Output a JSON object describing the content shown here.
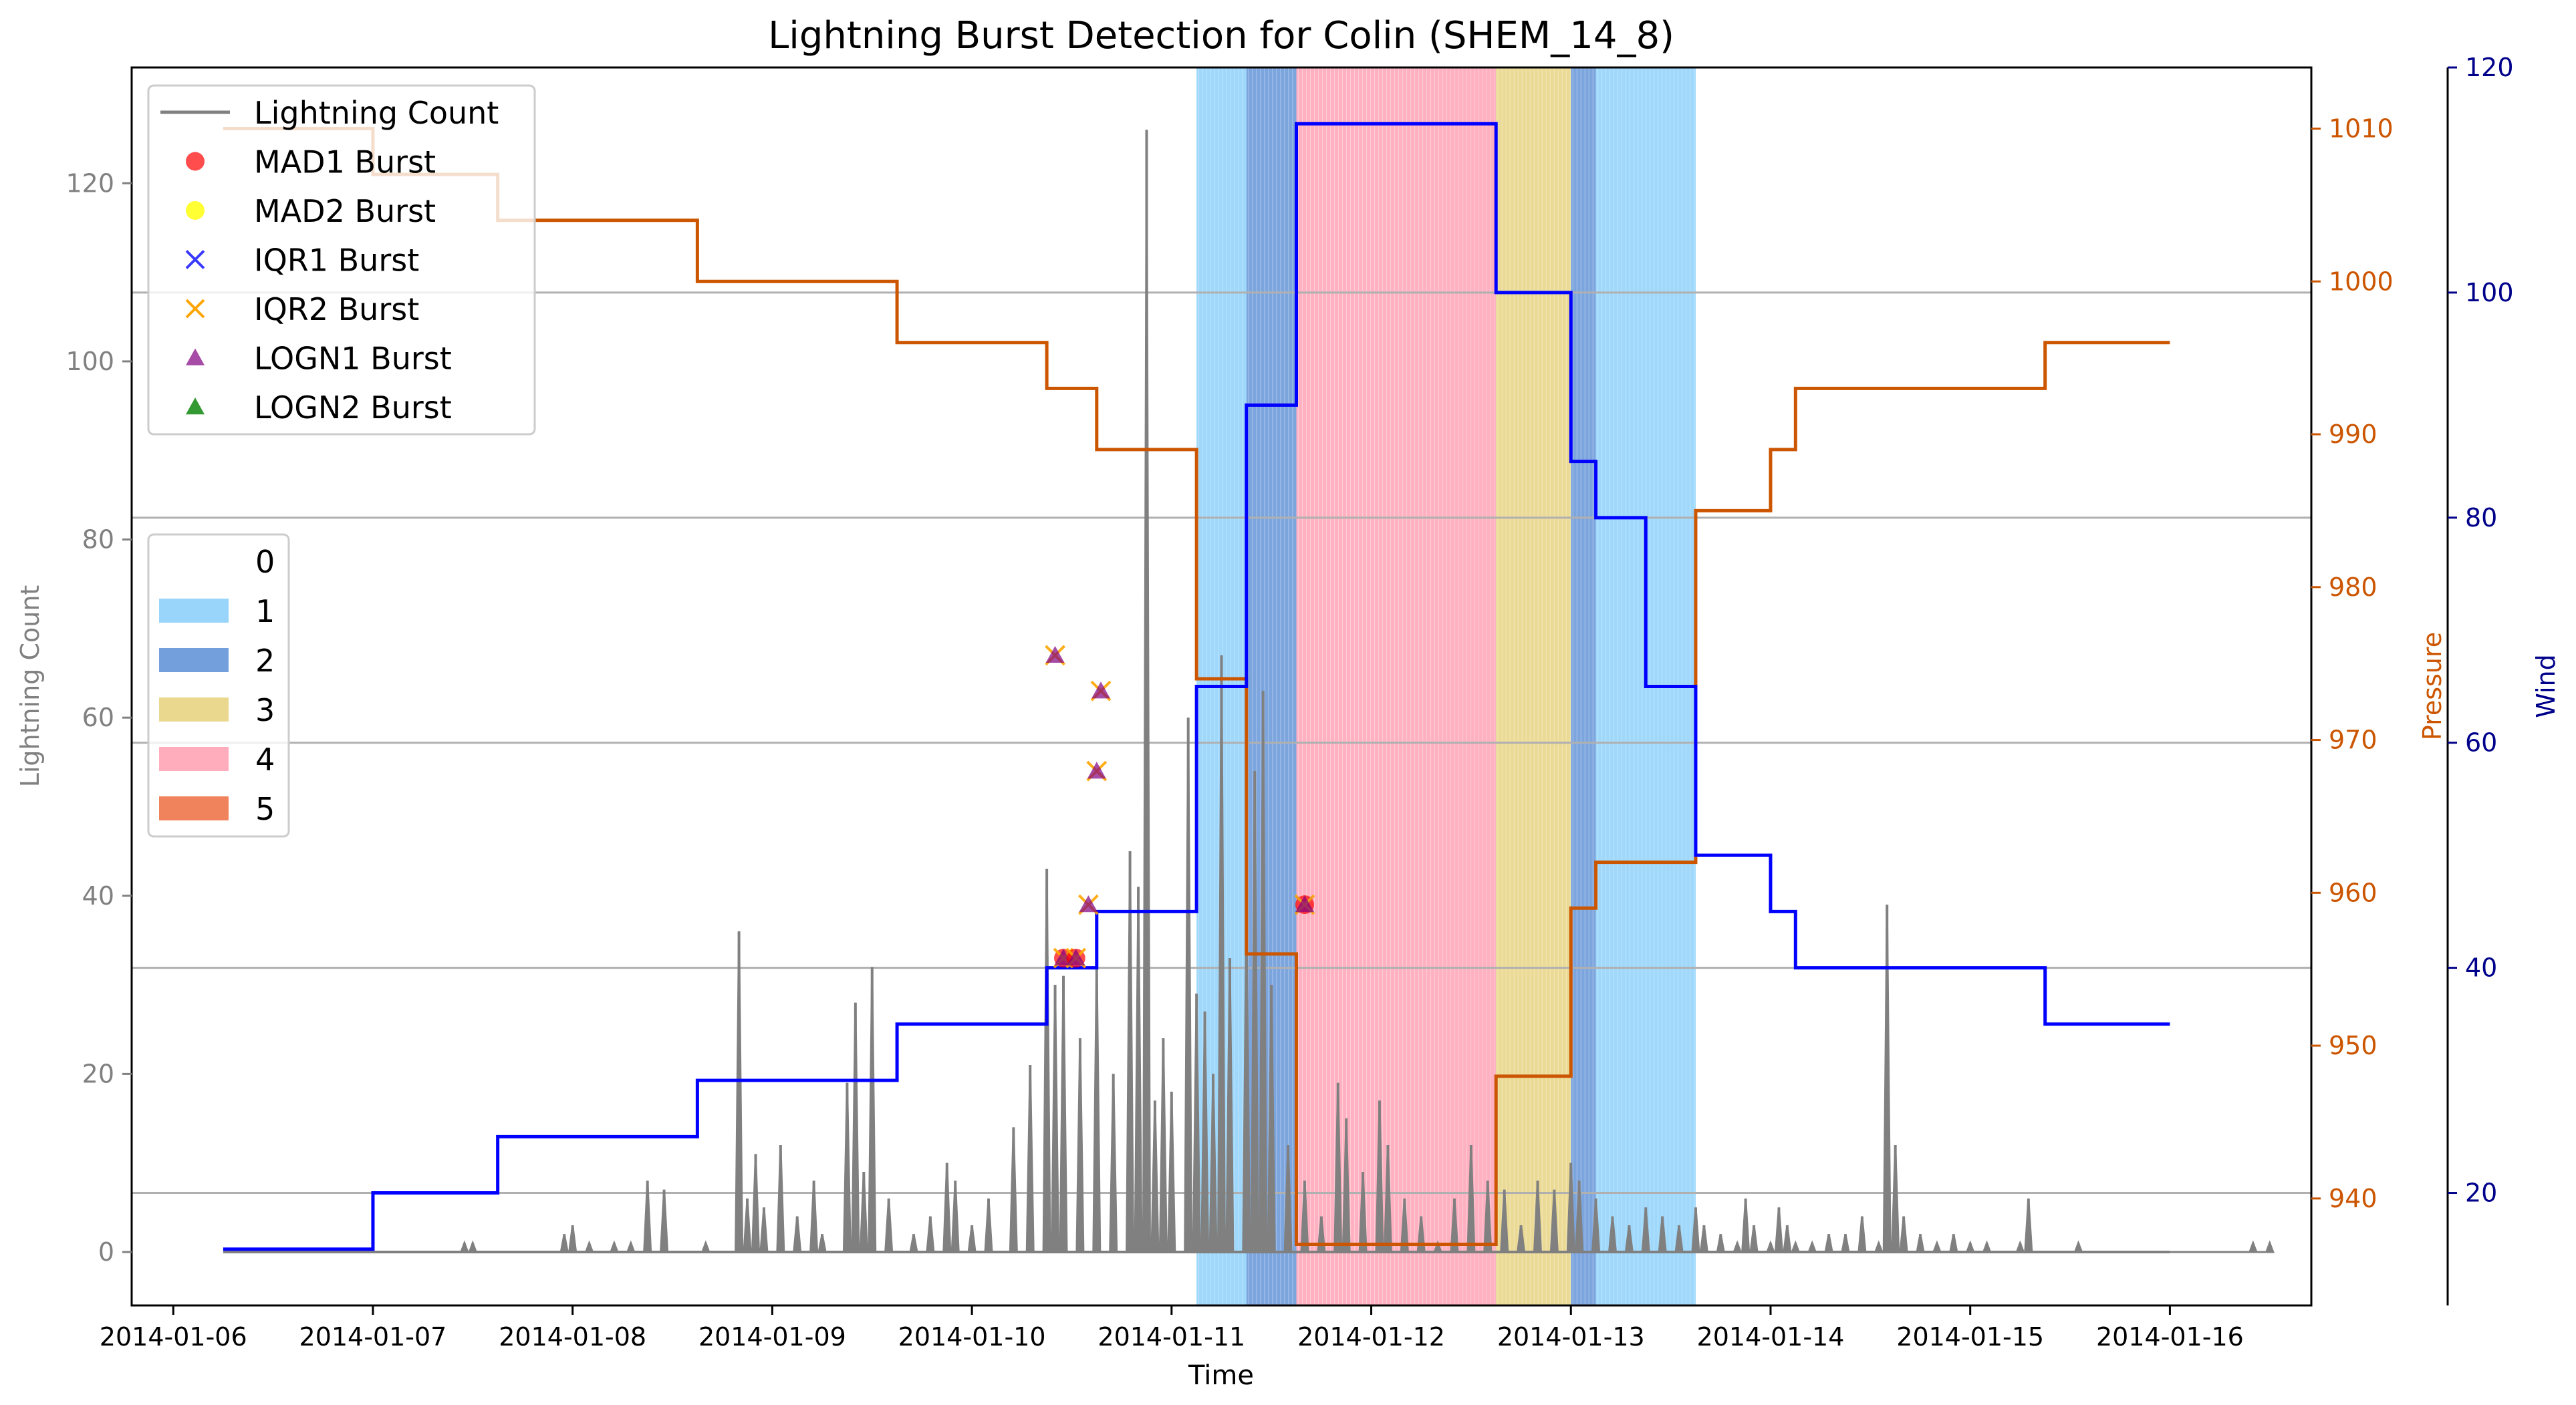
{
  "chart_data": {
    "type": "line",
    "title": "Lightning Burst Detection for Colin (SHEM_14_8)",
    "xlabel": "Time",
    "ylabel_left": "Lightning Count",
    "ylabel_pressure": "Pressure",
    "ylabel_wind": "Wind",
    "x_ticks": [
      "2014-01-06",
      "2014-01-07",
      "2014-01-08",
      "2014-01-09",
      "2014-01-10",
      "2014-01-11",
      "2014-01-12",
      "2014-01-13",
      "2014-01-14",
      "2014-01-15",
      "2014-01-16"
    ],
    "x_range": [
      "2014-01-05 19:00",
      "2014-01-16 17:00"
    ],
    "y_left_ticks": [
      0,
      20,
      40,
      60,
      80,
      100,
      120
    ],
    "y_left_range": [
      -6,
      133
    ],
    "y_pressure_ticks": [
      940,
      950,
      960,
      970,
      980,
      990,
      1000,
      1010
    ],
    "y_pressure_range": [
      933,
      1014
    ],
    "y_wind_ticks": [
      20,
      40,
      60,
      80,
      100,
      120
    ],
    "y_wind_range": [
      10,
      120
    ],
    "grid": "horizontal lines at wind ticks",
    "colors": {
      "lightning": "#808080",
      "pressure": "#cc5500",
      "wind": "#0000ff",
      "wind_axis": "#00008b",
      "cat1": "#87cefa",
      "cat2": "#5b8fd6",
      "cat3": "#e6d17a",
      "cat4": "#ff9eb2",
      "cat5": "#ee6d40"
    },
    "category_shading": [
      {
        "category": 1,
        "start": "2014-01-11 03:00",
        "end": "2014-01-11 09:00"
      },
      {
        "category": 2,
        "start": "2014-01-11 09:00",
        "end": "2014-01-11 15:00"
      },
      {
        "category": 4,
        "start": "2014-01-11 15:00",
        "end": "2014-01-12 15:00"
      },
      {
        "category": 3,
        "start": "2014-01-12 15:00",
        "end": "2014-01-13 00:00"
      },
      {
        "category": 2,
        "start": "2014-01-13 00:00",
        "end": "2014-01-13 03:00"
      },
      {
        "category": 1,
        "start": "2014-01-13 03:00",
        "end": "2014-01-13 15:00"
      }
    ],
    "pressure_series": [
      [
        "2014-01-06 06:00",
        1010
      ],
      [
        "2014-01-07 00:00",
        1007
      ],
      [
        "2014-01-07 15:00",
        1004
      ],
      [
        "2014-01-08 15:00",
        1000
      ],
      [
        "2014-01-09 15:00",
        996
      ],
      [
        "2014-01-10 09:00",
        993
      ],
      [
        "2014-01-10 15:00",
        989
      ],
      [
        "2014-01-11 03:00",
        974
      ],
      [
        "2014-01-11 09:00",
        956
      ],
      [
        "2014-01-11 15:00",
        937
      ],
      [
        "2014-01-12 15:00",
        948
      ],
      [
        "2014-01-13 00:00",
        959
      ],
      [
        "2014-01-13 03:00",
        962
      ],
      [
        "2014-01-13 15:00",
        974
      ],
      [
        "2014-01-13 15:00",
        985
      ],
      [
        "2014-01-14 00:00",
        989
      ],
      [
        "2014-01-14 03:00",
        993
      ],
      [
        "2014-01-15 09:00",
        996
      ],
      [
        "2014-01-16 00:00",
        996
      ]
    ],
    "wind_series": [
      [
        "2014-01-06 06:00",
        15
      ],
      [
        "2014-01-07 00:00",
        20
      ],
      [
        "2014-01-07 15:00",
        25
      ],
      [
        "2014-01-08 15:00",
        30
      ],
      [
        "2014-01-09 15:00",
        35
      ],
      [
        "2014-01-10 09:00",
        40
      ],
      [
        "2014-01-10 15:00",
        45
      ],
      [
        "2014-01-11 03:00",
        65
      ],
      [
        "2014-01-11 09:00",
        90
      ],
      [
        "2014-01-11 15:00",
        115
      ],
      [
        "2014-01-12 15:00",
        100
      ],
      [
        "2014-01-13 00:00",
        85
      ],
      [
        "2014-01-13 03:00",
        80
      ],
      [
        "2014-01-13 09:00",
        65
      ],
      [
        "2014-01-13 15:00",
        50
      ],
      [
        "2014-01-14 00:00",
        45
      ],
      [
        "2014-01-14 03:00",
        40
      ],
      [
        "2014-01-15 09:00",
        35
      ],
      [
        "2014-01-16 00:00",
        35
      ]
    ],
    "lightning_spikes": [
      [
        "2014-01-07 11:00",
        1
      ],
      [
        "2014-01-07 12:00",
        1
      ],
      [
        "2014-01-07 23:00",
        2
      ],
      [
        "2014-01-08 00:00",
        3
      ],
      [
        "2014-01-08 02:00",
        1
      ],
      [
        "2014-01-08 05:00",
        1
      ],
      [
        "2014-01-08 07:00",
        1
      ],
      [
        "2014-01-08 09:00",
        8
      ],
      [
        "2014-01-08 11:00",
        7
      ],
      [
        "2014-01-08 16:00",
        1
      ],
      [
        "2014-01-08 20:00",
        36
      ],
      [
        "2014-01-08 21:00",
        6
      ],
      [
        "2014-01-08 22:00",
        11
      ],
      [
        "2014-01-08 23:00",
        5
      ],
      [
        "2014-01-09 01:00",
        12
      ],
      [
        "2014-01-09 03:00",
        4
      ],
      [
        "2014-01-09 05:00",
        8
      ],
      [
        "2014-01-09 06:00",
        2
      ],
      [
        "2014-01-09 09:00",
        19
      ],
      [
        "2014-01-09 10:00",
        28
      ],
      [
        "2014-01-09 11:00",
        9
      ],
      [
        "2014-01-09 12:00",
        32
      ],
      [
        "2014-01-09 14:00",
        6
      ],
      [
        "2014-01-09 17:00",
        2
      ],
      [
        "2014-01-09 19:00",
        4
      ],
      [
        "2014-01-09 21:00",
        10
      ],
      [
        "2014-01-09 22:00",
        8
      ],
      [
        "2014-01-10 00:00",
        3
      ],
      [
        "2014-01-10 02:00",
        6
      ],
      [
        "2014-01-10 05:00",
        14
      ],
      [
        "2014-01-10 07:00",
        21
      ],
      [
        "2014-01-10 09:00",
        43
      ],
      [
        "2014-01-10 10:00",
        30
      ],
      [
        "2014-01-10 11:00",
        31
      ],
      [
        "2014-01-10 13:00",
        24
      ],
      [
        "2014-01-10 15:00",
        33
      ],
      [
        "2014-01-10 17:00",
        20
      ],
      [
        "2014-01-10 19:00",
        45
      ],
      [
        "2014-01-10 20:00",
        41
      ],
      [
        "2014-01-10 21:00",
        126
      ],
      [
        "2014-01-10 22:00",
        17
      ],
      [
        "2014-01-10 23:00",
        24
      ],
      [
        "2014-01-11 00:00",
        18
      ],
      [
        "2014-01-11 02:00",
        60
      ],
      [
        "2014-01-11 03:00",
        29
      ],
      [
        "2014-01-11 04:00",
        27
      ],
      [
        "2014-01-11 05:00",
        20
      ],
      [
        "2014-01-11 06:00",
        67
      ],
      [
        "2014-01-11 07:00",
        33
      ],
      [
        "2014-01-11 09:00",
        39
      ],
      [
        "2014-01-11 10:00",
        54
      ],
      [
        "2014-01-11 11:00",
        63
      ],
      [
        "2014-01-11 12:00",
        30
      ],
      [
        "2014-01-11 14:00",
        12
      ],
      [
        "2014-01-11 16:00",
        8
      ],
      [
        "2014-01-11 18:00",
        4
      ],
      [
        "2014-01-11 20:00",
        19
      ],
      [
        "2014-01-11 21:00",
        15
      ],
      [
        "2014-01-11 23:00",
        9
      ],
      [
        "2014-01-12 01:00",
        17
      ],
      [
        "2014-01-12 02:00",
        12
      ],
      [
        "2014-01-12 04:00",
        6
      ],
      [
        "2014-01-12 06:00",
        4
      ],
      [
        "2014-01-12 08:00",
        1
      ],
      [
        "2014-01-12 10:00",
        6
      ],
      [
        "2014-01-12 12:00",
        12
      ],
      [
        "2014-01-12 14:00",
        8
      ],
      [
        "2014-01-12 16:00",
        7
      ],
      [
        "2014-01-12 18:00",
        3
      ],
      [
        "2014-01-12 20:00",
        8
      ],
      [
        "2014-01-12 22:00",
        7
      ],
      [
        "2014-01-13 00:00",
        10
      ],
      [
        "2014-01-13 01:00",
        8
      ],
      [
        "2014-01-13 03:00",
        6
      ],
      [
        "2014-01-13 05:00",
        4
      ],
      [
        "2014-01-13 07:00",
        3
      ],
      [
        "2014-01-13 09:00",
        5
      ],
      [
        "2014-01-13 11:00",
        4
      ],
      [
        "2014-01-13 13:00",
        3
      ],
      [
        "2014-01-13 15:00",
        5
      ],
      [
        "2014-01-13 16:00",
        3
      ],
      [
        "2014-01-13 18:00",
        2
      ],
      [
        "2014-01-13 20:00",
        1
      ],
      [
        "2014-01-13 21:00",
        6
      ],
      [
        "2014-01-13 22:00",
        3
      ],
      [
        "2014-01-14 00:00",
        1
      ],
      [
        "2014-01-14 01:00",
        5
      ],
      [
        "2014-01-14 02:00",
        3
      ],
      [
        "2014-01-14 03:00",
        1
      ],
      [
        "2014-01-14 05:00",
        1
      ],
      [
        "2014-01-14 07:00",
        2
      ],
      [
        "2014-01-14 09:00",
        2
      ],
      [
        "2014-01-14 11:00",
        4
      ],
      [
        "2014-01-14 13:00",
        1
      ],
      [
        "2014-01-14 14:00",
        39
      ],
      [
        "2014-01-14 15:00",
        12
      ],
      [
        "2014-01-14 16:00",
        4
      ],
      [
        "2014-01-14 18:00",
        2
      ],
      [
        "2014-01-14 20:00",
        1
      ],
      [
        "2014-01-14 22:00",
        2
      ],
      [
        "2014-01-15 00:00",
        1
      ],
      [
        "2014-01-15 02:00",
        1
      ],
      [
        "2014-01-15 06:00",
        1
      ],
      [
        "2014-01-15 07:00",
        6
      ],
      [
        "2014-01-15 13:00",
        1
      ],
      [
        "2014-01-16 10:00",
        1
      ],
      [
        "2014-01-16 12:00",
        1
      ]
    ],
    "bursts": [
      {
        "time": "2014-01-10 10:00",
        "value": 67,
        "types": [
          "IQR2",
          "LOGN1"
        ]
      },
      {
        "time": "2014-01-10 11:00",
        "value": 33,
        "types": [
          "MAD1",
          "IQR2",
          "LOGN1"
        ]
      },
      {
        "time": "2014-01-10 12:30",
        "value": 33,
        "types": [
          "MAD1",
          "IQR2",
          "LOGN1"
        ]
      },
      {
        "time": "2014-01-10 14:00",
        "value": 39,
        "types": [
          "IQR2",
          "LOGN1"
        ]
      },
      {
        "time": "2014-01-10 15:00",
        "value": 54,
        "types": [
          "IQR2",
          "LOGN1"
        ]
      },
      {
        "time": "2014-01-10 15:30",
        "value": 63,
        "types": [
          "IQR2",
          "LOGN1"
        ]
      },
      {
        "time": "2014-01-11 16:00",
        "value": 39,
        "types": [
          "MAD1",
          "IQR1",
          "IQR2",
          "LOGN1"
        ]
      }
    ],
    "legend_lines": [
      "Lightning Count",
      "MAD1 Burst",
      "MAD2 Burst",
      "IQR1 Burst",
      "IQR2 Burst",
      "LOGN1 Burst",
      "LOGN2 Burst"
    ],
    "legend_categories": [
      "0",
      "1",
      "2",
      "3",
      "4",
      "5"
    ],
    "legend_placement": "upper-left"
  }
}
